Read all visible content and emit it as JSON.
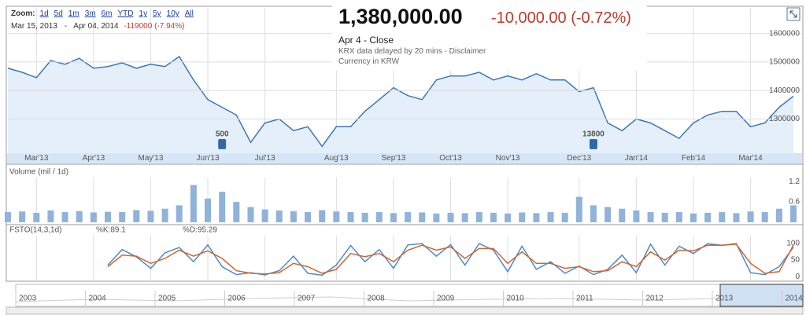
{
  "header": {
    "zoom_label": "Zoom:",
    "zoom_links": [
      "1d",
      "5d",
      "1m",
      "3m",
      "6m",
      "YTD",
      "1y",
      "5y",
      "10y",
      "All"
    ],
    "date_from": "Mar 15, 2013",
    "date_sep": "-",
    "date_to": "Apr 04, 2014",
    "range_change": "-119000 (-7.94%)",
    "price": "1,380,000.00",
    "price_change": "-10,000.00 (-0.72%)",
    "date_label": "Apr 4 - Close",
    "notes": [
      "KRX data delayed by 20 mins - Disclaimer",
      "Currency in KRW"
    ]
  },
  "navigator": {
    "years": [
      "2003",
      "2004",
      "2005",
      "2006",
      "2007",
      "2008",
      "2009",
      "2010",
      "2011",
      "2012",
      "2013",
      "2014"
    ]
  },
  "chart_data": [
    {
      "type": "line",
      "categories": [
        null,
        null,
        "Mar'13",
        null,
        null,
        null,
        "Apr'13",
        null,
        null,
        null,
        "May'13",
        null,
        null,
        null,
        "Jun'13",
        null,
        null,
        null,
        "Jul'13",
        null,
        null,
        null,
        null,
        "Aug'13",
        null,
        null,
        null,
        "Sep'13",
        null,
        null,
        null,
        "Oct'13",
        null,
        null,
        null,
        "Nov'13",
        null,
        null,
        null,
        null,
        "Dec'13",
        null,
        null,
        null,
        "Jan'14",
        null,
        null,
        null,
        "Feb'14",
        null,
        null,
        null,
        "Mar'14",
        null,
        null,
        null
      ],
      "values": [
        1478000,
        1464000,
        1445000,
        1505000,
        1492000,
        1513000,
        1478000,
        1484000,
        1497000,
        1478000,
        1492000,
        1484000,
        1519000,
        1437000,
        1368000,
        1341000,
        1314000,
        1218000,
        1286000,
        1300000,
        1259000,
        1273000,
        1204000,
        1273000,
        1273000,
        1327000,
        1368000,
        1410000,
        1382000,
        1368000,
        1437000,
        1451000,
        1451000,
        1464000,
        1437000,
        1451000,
        1437000,
        1459000,
        1437000,
        1437000,
        1396000,
        1410000,
        1286000,
        1259000,
        1300000,
        1286000,
        1259000,
        1232000,
        1286000,
        1314000,
        1327000,
        1327000,
        1273000,
        1286000,
        1341000,
        1380000
      ],
      "dividends": [
        null,
        null,
        null,
        null,
        null,
        null,
        null,
        null,
        null,
        null,
        null,
        null,
        null,
        null,
        null,
        500,
        null,
        null,
        null,
        null,
        null,
        null,
        null,
        null,
        null,
        null,
        null,
        null,
        null,
        null,
        null,
        null,
        null,
        null,
        null,
        null,
        null,
        null,
        null,
        null,
        null,
        13800,
        null,
        null,
        null,
        null,
        null,
        null,
        null,
        null,
        null,
        null,
        null,
        null,
        null,
        null
      ],
      "dividend_flag": "D",
      "color": "#3d77b8",
      "fill_color": "#e4eff9",
      "ylim": [
        1180000,
        1690000
      ],
      "yticks": [
        1300000,
        1400000,
        1500000,
        1600000
      ],
      "grid": true
    },
    {
      "type": "bar",
      "title": "Volume (mil / 1d)",
      "values": [
        0.3,
        0.32,
        0.28,
        0.35,
        0.3,
        0.33,
        0.29,
        0.31,
        0.3,
        0.36,
        0.34,
        0.4,
        0.5,
        1.1,
        0.7,
        0.9,
        0.6,
        0.45,
        0.38,
        0.35,
        0.33,
        0.3,
        0.36,
        0.32,
        0.3,
        0.28,
        0.3,
        0.27,
        0.3,
        0.29,
        0.26,
        0.28,
        0.27,
        0.3,
        0.28,
        0.26,
        0.29,
        0.27,
        0.3,
        0.28,
        0.75,
        0.5,
        0.45,
        0.4,
        0.35,
        0.3,
        0.28,
        0.3,
        0.26,
        0.28,
        0.3,
        0.27,
        0.32,
        0.3,
        0.4,
        0.5
      ],
      "color": "#8fb3d9",
      "ylim": [
        0,
        1.32
      ],
      "yticks": [
        0.6,
        1.2
      ]
    },
    {
      "type": "line",
      "title": "FSTO(14,3,1d)",
      "series": [
        {
          "name": "%K:89.1",
          "color": "#4a8bcf",
          "values": [
            null,
            null,
            null,
            null,
            null,
            null,
            null,
            35,
            82,
            60,
            25,
            72,
            88,
            45,
            96,
            30,
            6,
            12,
            5,
            18,
            62,
            10,
            4,
            35,
            94,
            45,
            82,
            25,
            96,
            100,
            62,
            97,
            35,
            100,
            80,
            15,
            92,
            22,
            45,
            10,
            32,
            6,
            22,
            65,
            12,
            98,
            35,
            92,
            70,
            100,
            95,
            100,
            12,
            6,
            30,
            89.1
          ]
        },
        {
          "name": "%D:95.29",
          "color": "#d5652e",
          "values": [
            null,
            null,
            null,
            null,
            null,
            null,
            null,
            30,
            65,
            62,
            40,
            55,
            80,
            62,
            78,
            55,
            18,
            10,
            8,
            12,
            40,
            30,
            10,
            22,
            70,
            60,
            70,
            45,
            80,
            95,
            80,
            90,
            55,
            85,
            85,
            40,
            75,
            40,
            40,
            25,
            30,
            15,
            18,
            45,
            30,
            75,
            50,
            80,
            78,
            95,
            95,
            98,
            40,
            10,
            15,
            95.29
          ]
        }
      ],
      "ylim": [
        -14,
        124
      ],
      "yticks": [
        0,
        50,
        100
      ]
    }
  ]
}
